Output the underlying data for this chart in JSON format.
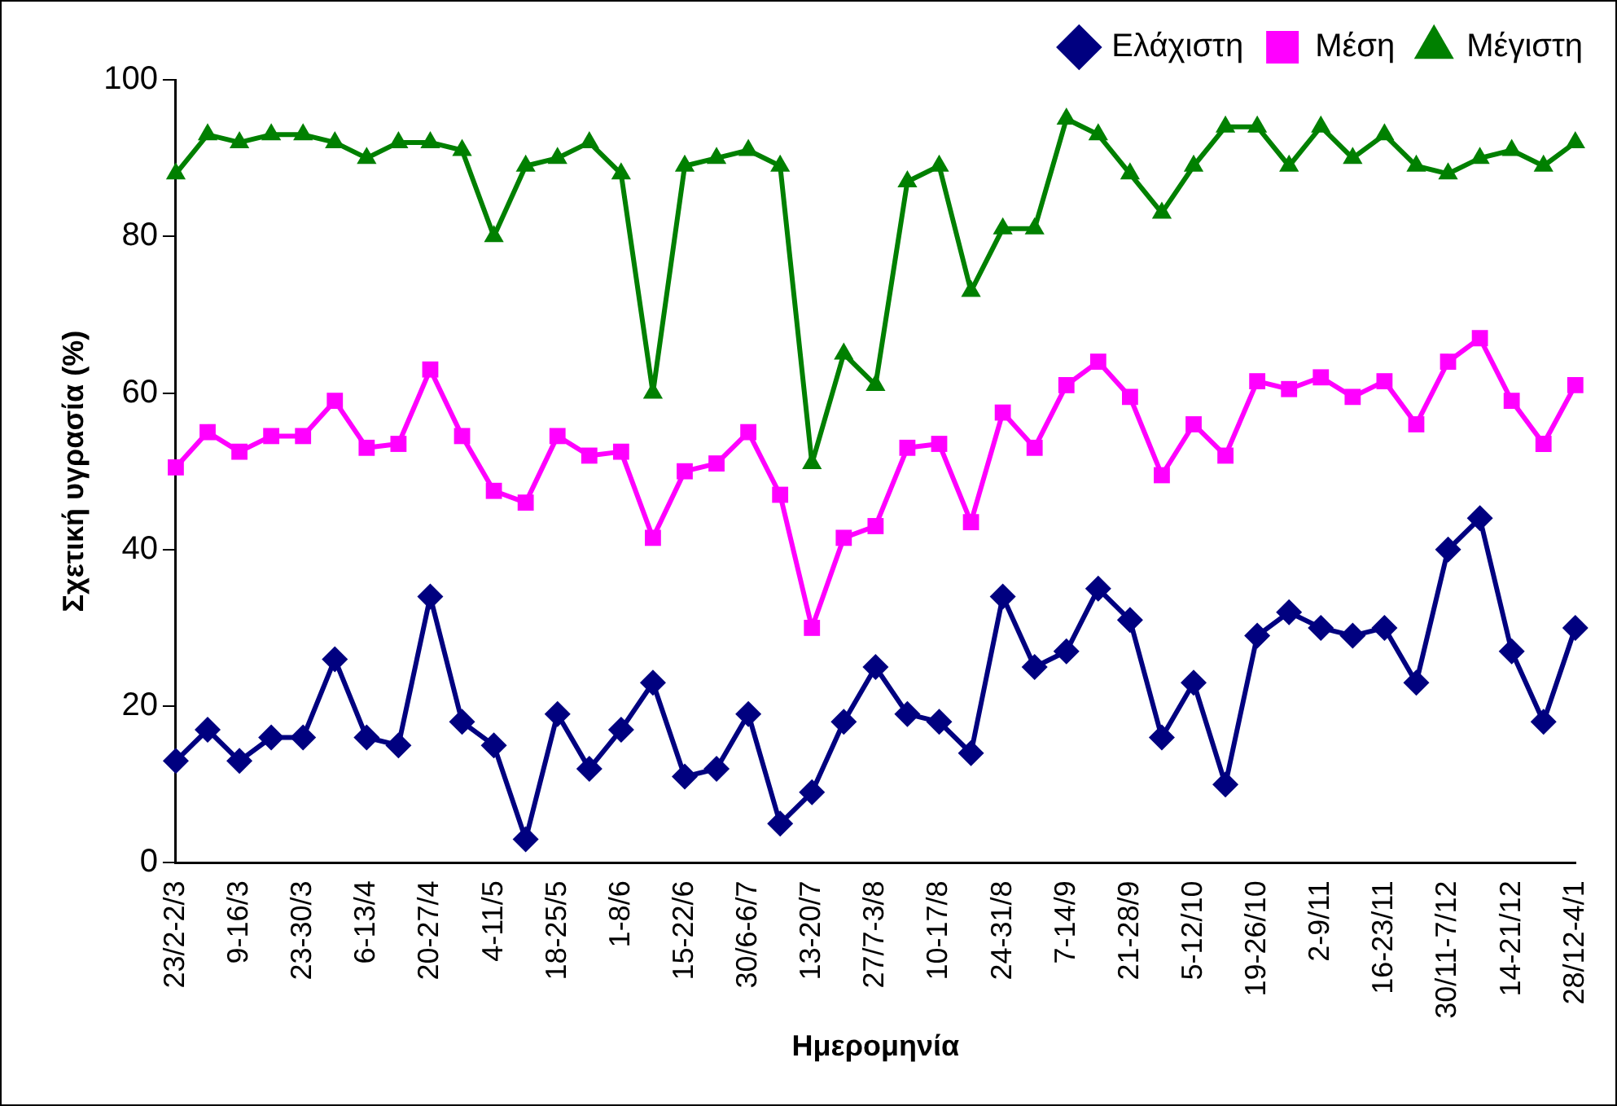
{
  "chart_data": {
    "type": "line",
    "xlabel": "Ημερομηνία",
    "ylabel": "Σχετική υγρασία (%)",
    "categories": [
      "23/2-2/3",
      null,
      "9-16/3",
      null,
      "23-30/3",
      null,
      "6-13/4",
      null,
      "20-27/4",
      null,
      "4-11/5",
      null,
      "18-25/5",
      null,
      "1-8/6",
      null,
      "15-22/6",
      null,
      "30/6-6/7",
      null,
      "13-20/7",
      null,
      "27/7-3/8",
      null,
      "10-17/8",
      null,
      "24-31/8",
      null,
      "7-14/9",
      null,
      "21-28/9",
      null,
      "5-12/10",
      null,
      "19-26/10",
      null,
      "2-9/11",
      null,
      "16-23/11",
      null,
      "30/11-7/12",
      null,
      "14-21/12",
      null,
      "28/12-4/1"
    ],
    "series": [
      {
        "name": "Ελάχιστη",
        "color": "#000080",
        "marker": "diamond",
        "values": [
          13,
          17,
          13,
          16,
          16,
          26,
          16,
          15,
          34,
          18,
          15,
          3,
          19,
          12,
          17,
          23,
          11,
          12,
          19,
          5,
          9,
          18,
          25,
          19,
          18,
          14,
          34,
          25,
          27,
          35,
          31,
          16,
          23,
          10,
          29,
          32,
          30,
          29,
          30,
          23,
          40,
          44,
          27,
          18,
          30
        ]
      },
      {
        "name": "Μέση",
        "color": "#ff00ff",
        "marker": "square",
        "values": [
          50.5,
          55,
          52.5,
          54.5,
          54.5,
          59,
          53,
          53.5,
          63,
          54.5,
          47.5,
          46,
          54.5,
          52,
          52.5,
          41.5,
          50,
          51,
          55,
          47,
          30,
          41.5,
          43,
          53,
          53.5,
          43.5,
          57.5,
          53,
          61,
          64,
          59.5,
          49.5,
          56,
          52,
          61.5,
          60.5,
          62,
          59.5,
          61.5,
          56,
          64,
          67,
          59,
          53.5,
          61
        ]
      },
      {
        "name": "Μέγιστη",
        "color": "#008000",
        "marker": "triangle",
        "values": [
          88,
          93,
          92,
          93,
          93,
          92,
          90,
          92,
          92,
          91,
          80,
          89,
          90,
          92,
          88,
          60,
          89,
          90,
          91,
          89,
          51,
          65,
          61,
          87,
          89,
          73,
          81,
          81,
          95,
          93,
          88,
          83,
          89,
          94,
          94,
          89,
          94,
          90,
          93,
          89,
          88,
          90,
          91,
          89,
          92
        ]
      }
    ],
    "ylim": [
      0,
      100
    ],
    "yticks": [
      0,
      20,
      40,
      60,
      80,
      100
    ],
    "grid": false,
    "legend": "top right",
    "line_style": "solid"
  }
}
